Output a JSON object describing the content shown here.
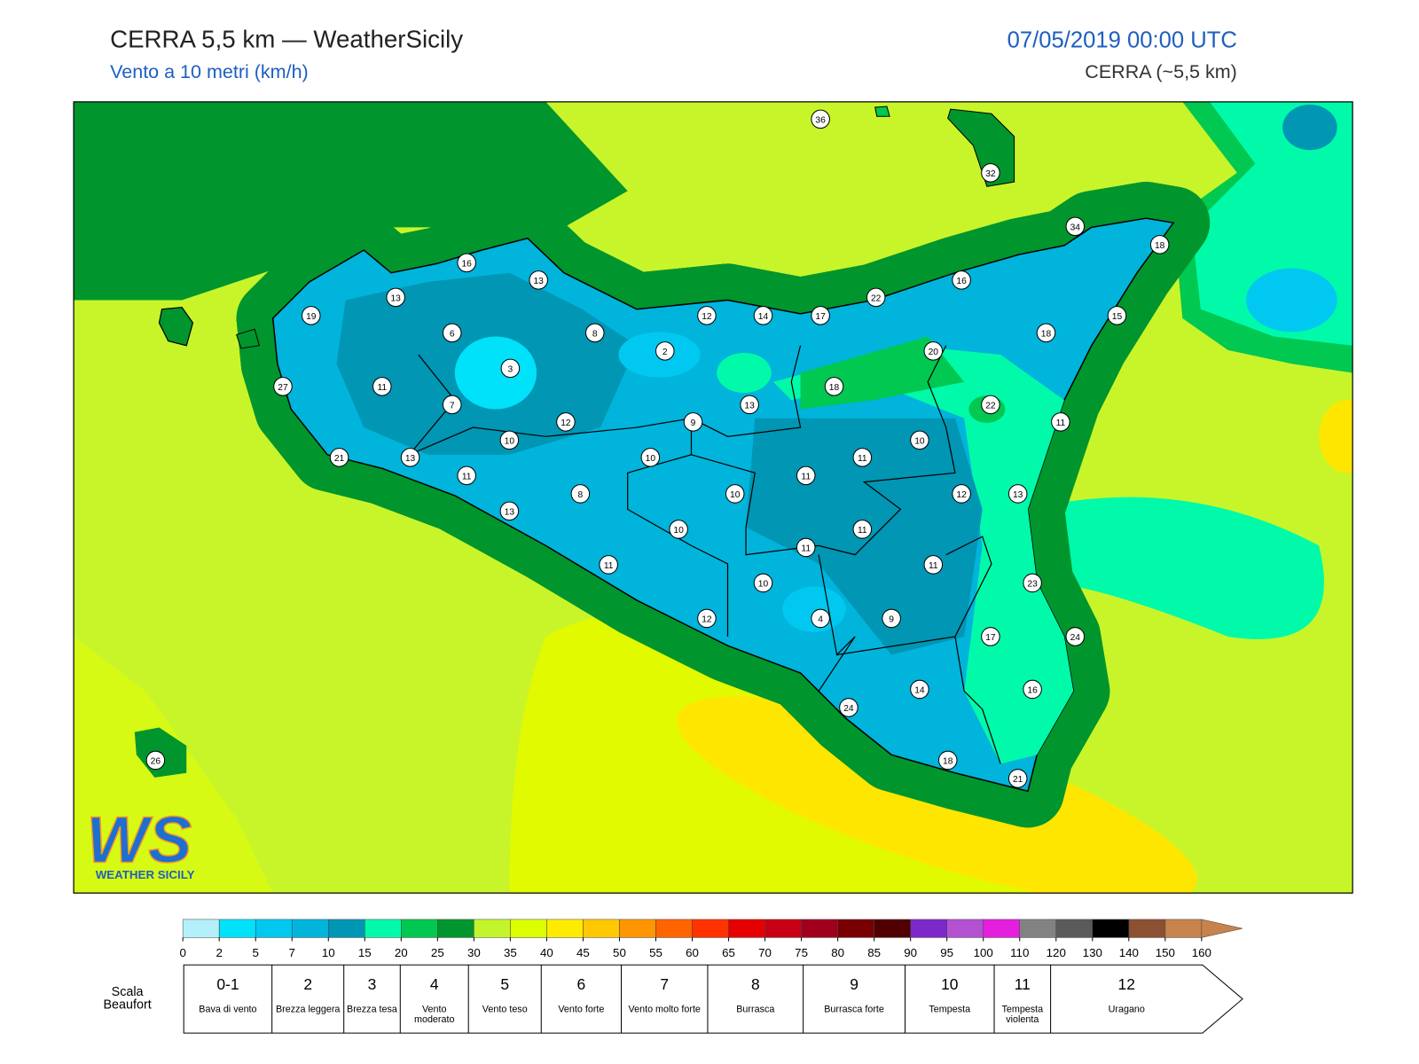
{
  "header": {
    "title": "CERRA 5,5 km — WeatherSicily",
    "subtitle": "Vento a 10 metri (km/h)",
    "datetime": "07/05/2019 00:00 UTC",
    "model": "CERRA (~5,5 km)"
  },
  "map": {
    "stations": [
      36,
      32,
      34,
      18,
      16,
      13,
      16,
      13,
      22,
      19,
      12,
      14,
      17,
      15,
      6,
      8,
      18,
      2,
      20,
      3,
      11,
      27,
      18,
      7,
      13,
      22,
      12,
      9,
      11,
      10,
      10,
      21,
      13,
      10,
      11,
      11,
      11,
      8,
      10,
      12,
      13,
      13,
      10,
      11,
      11,
      11,
      11,
      10,
      23,
      12,
      4,
      9,
      17,
      24,
      14,
      16,
      24,
      26,
      18,
      21
    ]
  },
  "colorbar": {
    "ticks": [
      0,
      2,
      5,
      7,
      10,
      15,
      20,
      25,
      30,
      35,
      40,
      45,
      50,
      55,
      60,
      65,
      70,
      75,
      80,
      85,
      90,
      95,
      100,
      110,
      120,
      130,
      140,
      150,
      160
    ],
    "colors": [
      "#b4f0fa",
      "#00e1fa",
      "#00c8f0",
      "#00b4dc",
      "#0096b4",
      "#00faaa",
      "#00c850",
      "#00962d",
      "#c3f52d",
      "#dcff00",
      "#ffeb00",
      "#ffc800",
      "#ff9600",
      "#ff6400",
      "#ff3200",
      "#e60000",
      "#c80014",
      "#a0001e",
      "#780000",
      "#500000",
      "#7d28c8",
      "#b450d2",
      "#e61ede",
      "#828282",
      "#5a5a5a",
      "#000000",
      "#8c5032",
      "#c8824b"
    ]
  },
  "beaufort": {
    "label": "Scala Beaufort",
    "scale": [
      {
        "force": "0-1",
        "description": "Bava di vento"
      },
      {
        "force": "2",
        "description": "Brezza leggera"
      },
      {
        "force": "3",
        "description": "Brezza tesa"
      },
      {
        "force": "4",
        "description": "Vento moderato"
      },
      {
        "force": "5",
        "description": "Vento teso"
      },
      {
        "force": "6",
        "description": "Vento forte"
      },
      {
        "force": "7",
        "description": "Vento molto forte"
      },
      {
        "force": "8",
        "description": "Burrasca"
      },
      {
        "force": "9",
        "description": "Burrasca forte"
      },
      {
        "force": "10",
        "description": "Tempesta"
      },
      {
        "force": "11",
        "description": "Tempesta violenta"
      },
      {
        "force": "12",
        "description": "Uragano"
      }
    ]
  },
  "logo": {
    "mark": "WS",
    "name": "WEATHER SICILY"
  }
}
